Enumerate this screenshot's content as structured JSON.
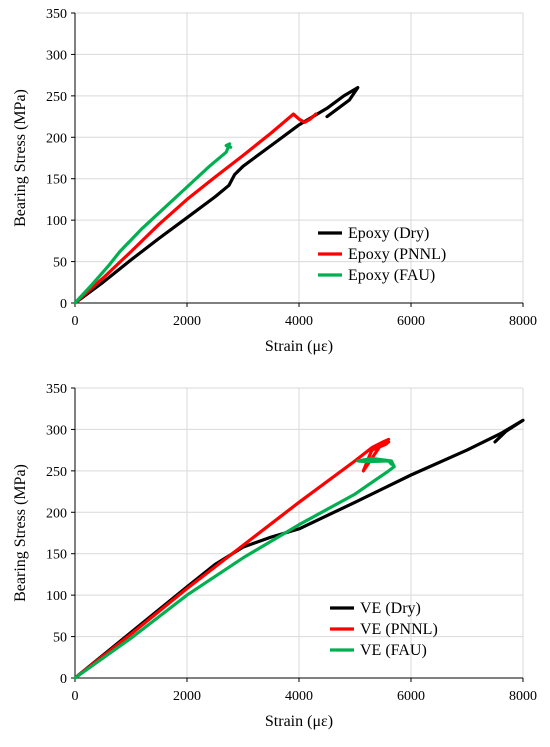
{
  "chart_data": [
    {
      "type": "line",
      "xlabel": "Strain (με)",
      "ylabel": "Bearing Stress (MPa)",
      "xlim": [
        0,
        8000
      ],
      "ylim": [
        0,
        350
      ],
      "xticks": [
        0,
        2000,
        4000,
        6000,
        8000
      ],
      "yticks": [
        0,
        50,
        100,
        150,
        200,
        250,
        300,
        350
      ],
      "grid": "major-both",
      "legend_position": "bottom-right",
      "series": [
        {
          "name": "Epoxy (Dry)",
          "color": "#000000",
          "x": [
            0,
            500,
            1000,
            1500,
            2000,
            2500,
            2750,
            2850,
            3000,
            3500,
            4000,
            4500,
            4800,
            5050,
            4900,
            4700,
            4500
          ],
          "y": [
            0,
            25,
            52,
            78,
            103,
            128,
            142,
            155,
            165,
            190,
            215,
            235,
            250,
            260,
            245,
            235,
            225
          ]
        },
        {
          "name": "Epoxy (PNNL)",
          "color": "#ff0000",
          "x": [
            0,
            500,
            1000,
            1500,
            2000,
            2500,
            3000,
            3500,
            3900,
            4000,
            4100,
            4200,
            4300
          ],
          "y": [
            0,
            30,
            62,
            95,
            125,
            152,
            178,
            205,
            228,
            222,
            218,
            222,
            228
          ]
        },
        {
          "name": "Epoxy (FAU)",
          "color": "#00b050",
          "x": [
            0,
            300,
            600,
            800,
            1200,
            1600,
            2000,
            2400,
            2700,
            2760,
            2700,
            2780
          ],
          "y": [
            0,
            22,
            45,
            62,
            90,
            115,
            140,
            165,
            182,
            192,
            190,
            188
          ]
        }
      ]
    },
    {
      "type": "line",
      "xlabel": "Strain (με)",
      "ylabel": "Bearing Stress (MPa)",
      "xlim": [
        0,
        8000
      ],
      "ylim": [
        0,
        350
      ],
      "xticks": [
        0,
        2000,
        4000,
        6000,
        8000
      ],
      "yticks": [
        0,
        50,
        100,
        150,
        200,
        250,
        300,
        350
      ],
      "grid": "major-both",
      "legend_position": "bottom-right",
      "series": [
        {
          "name": "VE (Dry)",
          "color": "#000000",
          "x": [
            0,
            1000,
            2000,
            2500,
            3000,
            3500,
            4000,
            5000,
            6000,
            7000,
            7600,
            8000,
            7700,
            7500
          ],
          "y": [
            0,
            55,
            110,
            137,
            158,
            170,
            180,
            212,
            245,
            275,
            295,
            311,
            298,
            285
          ]
        },
        {
          "name": "VE (PNNL)",
          "color": "#ff0000",
          "x": [
            0,
            1000,
            2000,
            3000,
            4000,
            5000,
            5300,
            5500,
            5600,
            5450,
            5150,
            5300,
            5550,
            5600
          ],
          "y": [
            0,
            53,
            108,
            160,
            212,
            262,
            278,
            285,
            288,
            280,
            250,
            275,
            282,
            285
          ]
        },
        {
          "name": "VE (FAU)",
          "color": "#00b050",
          "x": [
            0,
            1000,
            2000,
            3000,
            4000,
            5000,
            5600,
            5700,
            5650,
            5300,
            5050,
            5200,
            5600,
            5650
          ],
          "y": [
            0,
            48,
            100,
            145,
            185,
            222,
            250,
            255,
            262,
            265,
            262,
            261,
            262,
            258
          ]
        }
      ]
    }
  ]
}
